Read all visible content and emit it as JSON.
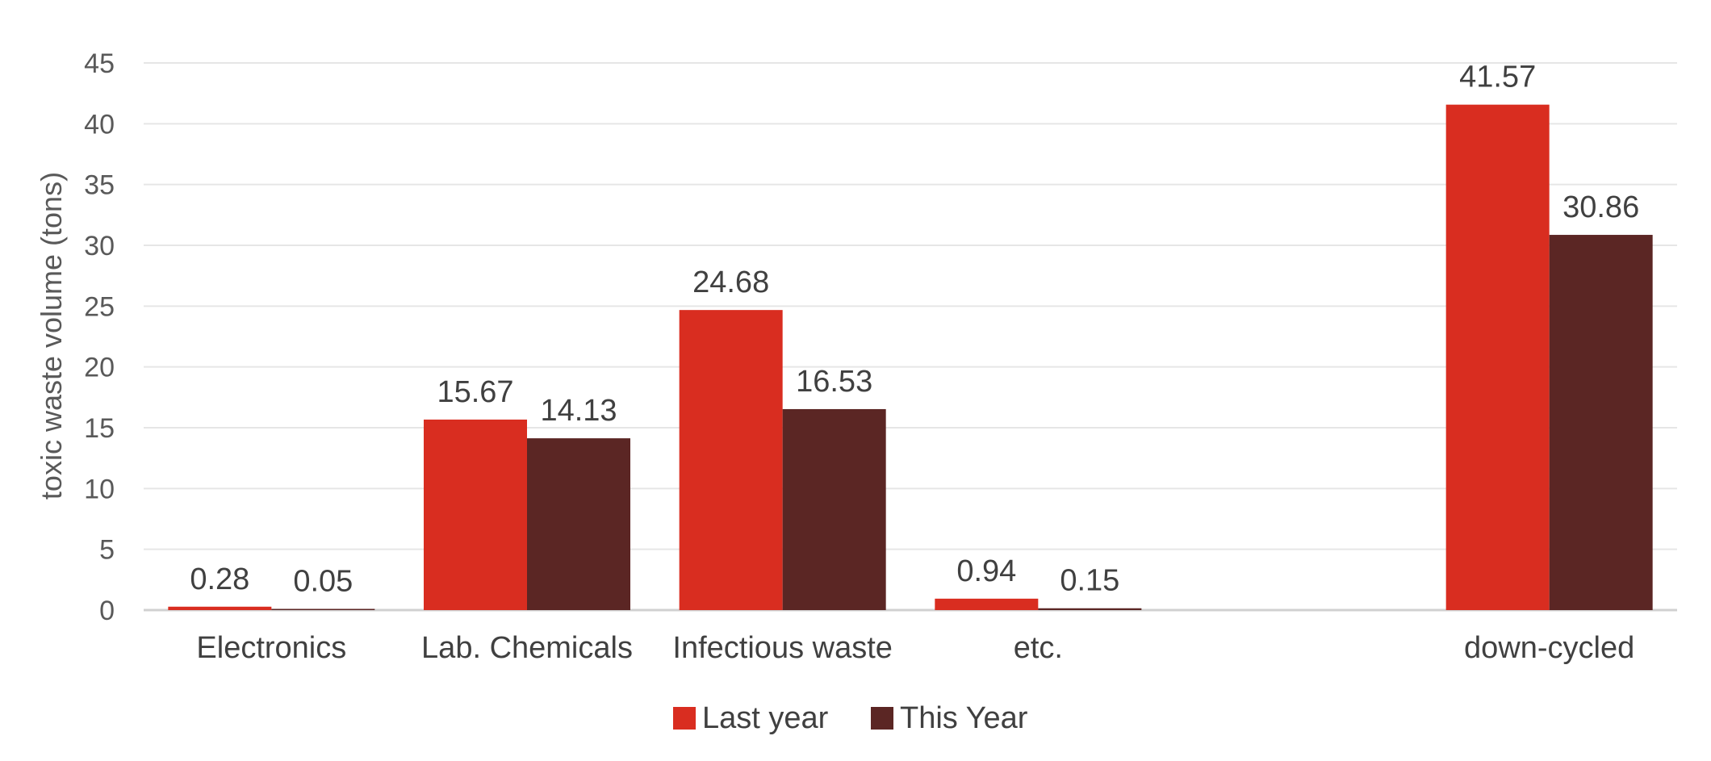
{
  "chart_data": {
    "type": "bar",
    "ylabel": "toxic waste volume (tons)",
    "xlabel": "",
    "title": "",
    "categories": [
      "Electronics",
      "Lab. Chemicals",
      "Infectious waste",
      "etc.",
      "",
      "down-cycled"
    ],
    "series": [
      {
        "name": "Last year",
        "color": "#d92d20",
        "values": [
          0.28,
          15.67,
          24.68,
          0.94,
          null,
          41.57
        ]
      },
      {
        "name": "This Year",
        "color": "#5b2624",
        "values": [
          0.05,
          14.13,
          16.53,
          0.15,
          null,
          30.86
        ]
      }
    ],
    "data_labels": [
      [
        "0.28",
        "15.67",
        "24.68",
        "0.94",
        "",
        "41.57"
      ],
      [
        "0.05",
        "14.13",
        "16.53",
        "0.15",
        "",
        "30.86"
      ]
    ],
    "ylim": [
      0,
      45
    ],
    "yticks": [
      "0",
      "5",
      "10",
      "15",
      "20",
      "25",
      "30",
      "35",
      "40",
      "45"
    ],
    "grid": true,
    "legend_position": "bottom"
  }
}
